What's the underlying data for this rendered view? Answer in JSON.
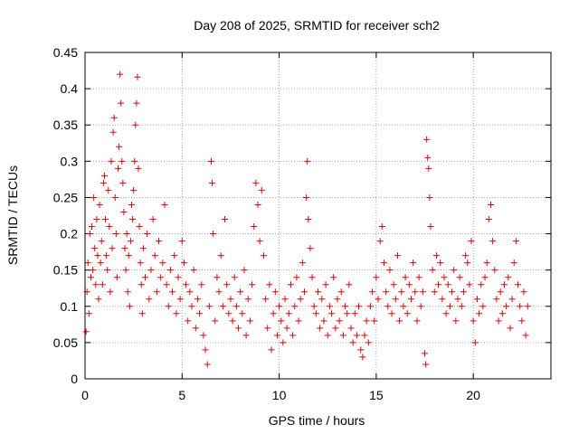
{
  "chart_data": {
    "type": "scatter",
    "title": "Day 208 of 2025, SRMTID for receiver sch2",
    "xlabel": "GPS time / hours",
    "ylabel": "SRMTID / TECUs",
    "xlim": [
      0,
      24
    ],
    "ylim": [
      0,
      0.45
    ],
    "xticks": [
      0,
      5,
      10,
      15,
      20
    ],
    "xtick_labels": [
      "0",
      "5",
      "10",
      "15",
      "20"
    ],
    "yticks": [
      0,
      0.05,
      0.1,
      0.15,
      0.2,
      0.25,
      0.3,
      0.35,
      0.4,
      0.45
    ],
    "ytick_labels": [
      "0",
      "0.05",
      "0.1",
      "0.15",
      "0.2",
      "0.25",
      "0.3",
      "0.35",
      "0.4",
      "0.45"
    ],
    "grid": true,
    "marker": "plus",
    "color": "#ee0000",
    "series": [
      {
        "name": "sch2",
        "points": [
          [
            0.05,
            0.065
          ],
          [
            0.1,
            0.12
          ],
          [
            0.15,
            0.16
          ],
          [
            0.2,
            0.09
          ],
          [
            0.25,
            0.2
          ],
          [
            0.3,
            0.14
          ],
          [
            0.35,
            0.21
          ],
          [
            0.4,
            0.15
          ],
          [
            0.45,
            0.25
          ],
          [
            0.5,
            0.18
          ],
          [
            0.55,
            0.13
          ],
          [
            0.6,
            0.22
          ],
          [
            0.65,
            0.17
          ],
          [
            0.7,
            0.11
          ],
          [
            0.75,
            0.24
          ],
          [
            0.8,
            0.16
          ],
          [
            0.85,
            0.19
          ],
          [
            0.9,
            0.13
          ],
          [
            0.95,
            0.27
          ],
          [
            1.0,
            0.28
          ],
          [
            1.05,
            0.22
          ],
          [
            1.1,
            0.17
          ],
          [
            1.15,
            0.15
          ],
          [
            1.2,
            0.26
          ],
          [
            1.25,
            0.21
          ],
          [
            1.3,
            0.12
          ],
          [
            1.35,
            0.3
          ],
          [
            1.4,
            0.18
          ],
          [
            1.45,
            0.34
          ],
          [
            1.5,
            0.36
          ],
          [
            1.55,
            0.25
          ],
          [
            1.6,
            0.2
          ],
          [
            1.65,
            0.14
          ],
          [
            1.7,
            0.29
          ],
          [
            1.75,
            0.32
          ],
          [
            1.8,
            0.42
          ],
          [
            1.85,
            0.38
          ],
          [
            1.9,
            0.3
          ],
          [
            1.95,
            0.27
          ],
          [
            2.0,
            0.23
          ],
          [
            2.05,
            0.18
          ],
          [
            2.1,
            0.15
          ],
          [
            2.15,
            0.2
          ],
          [
            2.2,
            0.12
          ],
          [
            2.25,
            0.17
          ],
          [
            2.3,
            0.1
          ],
          [
            2.35,
            0.19
          ],
          [
            2.4,
            0.24
          ],
          [
            2.45,
            0.22
          ],
          [
            2.5,
            0.26
          ],
          [
            2.55,
            0.3
          ],
          [
            2.6,
            0.35
          ],
          [
            2.65,
            0.38
          ],
          [
            2.7,
            0.416
          ],
          [
            2.75,
            0.29
          ],
          [
            2.8,
            0.21
          ],
          [
            2.85,
            0.16
          ],
          [
            2.9,
            0.13
          ],
          [
            2.95,
            0.09
          ],
          [
            3.0,
            0.18
          ],
          [
            3.1,
            0.14
          ],
          [
            3.2,
            0.2
          ],
          [
            3.3,
            0.11
          ],
          [
            3.4,
            0.15
          ],
          [
            3.5,
            0.22
          ],
          [
            3.6,
            0.17
          ],
          [
            3.7,
            0.12
          ],
          [
            3.8,
            0.19
          ],
          [
            3.9,
            0.14
          ],
          [
            4.0,
            0.16
          ],
          [
            4.1,
            0.24
          ],
          [
            4.2,
            0.13
          ],
          [
            4.3,
            0.1
          ],
          [
            4.4,
            0.15
          ],
          [
            4.5,
            0.12
          ],
          [
            4.6,
            0.17
          ],
          [
            4.7,
            0.09
          ],
          [
            4.8,
            0.14
          ],
          [
            4.9,
            0.11
          ],
          [
            5.0,
            0.19
          ],
          [
            5.1,
            0.16
          ],
          [
            5.2,
            0.13
          ],
          [
            5.3,
            0.08
          ],
          [
            5.4,
            0.12
          ],
          [
            5.5,
            0.1
          ],
          [
            5.6,
            0.15
          ],
          [
            5.7,
            0.07
          ],
          [
            5.8,
            0.11
          ],
          [
            5.9,
            0.09
          ],
          [
            6.0,
            0.13
          ],
          [
            6.1,
            0.06
          ],
          [
            6.2,
            0.04
          ],
          [
            6.3,
            0.02
          ],
          [
            6.4,
            0.1
          ],
          [
            6.5,
            0.3
          ],
          [
            6.55,
            0.27
          ],
          [
            6.6,
            0.2
          ],
          [
            6.7,
            0.08
          ],
          [
            6.8,
            0.14
          ],
          [
            6.9,
            0.12
          ],
          [
            7.0,
            0.17
          ],
          [
            7.1,
            0.1
          ],
          [
            7.2,
            0.22
          ],
          [
            7.3,
            0.13
          ],
          [
            7.4,
            0.09
          ],
          [
            7.5,
            0.11
          ],
          [
            7.6,
            0.08
          ],
          [
            7.7,
            0.14
          ],
          [
            7.8,
            0.1
          ],
          [
            7.9,
            0.07
          ],
          [
            8.0,
            0.12
          ],
          [
            8.1,
            0.09
          ],
          [
            8.2,
            0.15
          ],
          [
            8.3,
            0.06
          ],
          [
            8.4,
            0.11
          ],
          [
            8.5,
            0.08
          ],
          [
            8.6,
            0.13
          ],
          [
            8.7,
            0.21
          ],
          [
            8.8,
            0.27
          ],
          [
            8.9,
            0.24
          ],
          [
            9.0,
            0.19
          ],
          [
            9.1,
            0.26
          ],
          [
            9.2,
            0.17
          ],
          [
            9.3,
            0.11
          ],
          [
            9.4,
            0.07
          ],
          [
            9.5,
            0.13
          ],
          [
            9.6,
            0.04
          ],
          [
            9.7,
            0.09
          ],
          [
            9.8,
            0.12
          ],
          [
            9.9,
            0.06
          ],
          [
            10.0,
            0.1
          ],
          [
            10.1,
            0.08
          ],
          [
            10.2,
            0.05
          ],
          [
            10.3,
            0.11
          ],
          [
            10.4,
            0.07
          ],
          [
            10.5,
            0.09
          ],
          [
            10.6,
            0.13
          ],
          [
            10.7,
            0.06
          ],
          [
            10.8,
            0.1
          ],
          [
            10.9,
            0.14
          ],
          [
            11.0,
            0.08
          ],
          [
            11.1,
            0.11
          ],
          [
            11.2,
            0.16
          ],
          [
            11.3,
            0.12
          ],
          [
            11.4,
            0.25
          ],
          [
            11.45,
            0.3
          ],
          [
            11.5,
            0.22
          ],
          [
            11.6,
            0.18
          ],
          [
            11.7,
            0.14
          ],
          [
            11.8,
            0.1
          ],
          [
            11.9,
            0.09
          ],
          [
            12.0,
            0.12
          ],
          [
            12.1,
            0.07
          ],
          [
            12.2,
            0.11
          ],
          [
            12.3,
            0.08
          ],
          [
            12.4,
            0.13
          ],
          [
            12.5,
            0.06
          ],
          [
            12.6,
            0.1
          ],
          [
            12.7,
            0.09
          ],
          [
            12.8,
            0.14
          ],
          [
            12.9,
            0.07
          ],
          [
            13.0,
            0.11
          ],
          [
            13.1,
            0.08
          ],
          [
            13.2,
            0.12
          ],
          [
            13.3,
            0.06
          ],
          [
            13.4,
            0.1
          ],
          [
            13.5,
            0.09
          ],
          [
            13.6,
            0.13
          ],
          [
            13.7,
            0.07
          ],
          [
            13.8,
            0.05
          ],
          [
            13.9,
            0.09
          ],
          [
            14.0,
            0.06
          ],
          [
            14.1,
            0.1
          ],
          [
            14.2,
            0.04
          ],
          [
            14.3,
            0.03
          ],
          [
            14.4,
            0.06
          ],
          [
            14.5,
            0.08
          ],
          [
            14.6,
            0.05
          ],
          [
            14.7,
            0.1
          ],
          [
            14.8,
            0.12
          ],
          [
            14.9,
            0.08
          ],
          [
            15.0,
            0.14
          ],
          [
            15.1,
            0.11
          ],
          [
            15.2,
            0.19
          ],
          [
            15.3,
            0.21
          ],
          [
            15.4,
            0.16
          ],
          [
            15.5,
            0.12
          ],
          [
            15.6,
            0.1
          ],
          [
            15.7,
            0.15
          ],
          [
            15.8,
            0.09
          ],
          [
            15.9,
            0.13
          ],
          [
            16.0,
            0.11
          ],
          [
            16.1,
            0.17
          ],
          [
            16.2,
            0.08
          ],
          [
            16.3,
            0.12
          ],
          [
            16.4,
            0.1
          ],
          [
            16.5,
            0.14
          ],
          [
            16.6,
            0.09
          ],
          [
            16.7,
            0.13
          ],
          [
            16.8,
            0.11
          ],
          [
            16.9,
            0.16
          ],
          [
            17.0,
            0.12
          ],
          [
            17.1,
            0.08
          ],
          [
            17.2,
            0.14
          ],
          [
            17.3,
            0.1
          ],
          [
            17.4,
            0.12
          ],
          [
            17.5,
            0.035
          ],
          [
            17.55,
            0.02
          ],
          [
            17.6,
            0.33
          ],
          [
            17.65,
            0.305
          ],
          [
            17.7,
            0.29
          ],
          [
            17.75,
            0.25
          ],
          [
            17.8,
            0.21
          ],
          [
            17.9,
            0.15
          ],
          [
            18.0,
            0.12
          ],
          [
            18.1,
            0.17
          ],
          [
            18.2,
            0.13
          ],
          [
            18.3,
            0.16
          ],
          [
            18.4,
            0.11
          ],
          [
            18.5,
            0.14
          ],
          [
            18.6,
            0.09
          ],
          [
            18.7,
            0.13
          ],
          [
            18.8,
            0.1
          ],
          [
            18.9,
            0.12
          ],
          [
            19.0,
            0.15
          ],
          [
            19.1,
            0.08
          ],
          [
            19.2,
            0.11
          ],
          [
            19.3,
            0.14
          ],
          [
            19.4,
            0.1
          ],
          [
            19.5,
            0.12
          ],
          [
            19.6,
            0.17
          ],
          [
            19.7,
            0.16
          ],
          [
            19.8,
            0.13
          ],
          [
            19.9,
            0.19
          ],
          [
            20.0,
            0.08
          ],
          [
            20.1,
            0.05
          ],
          [
            20.2,
            0.11
          ],
          [
            20.3,
            0.09
          ],
          [
            20.4,
            0.13
          ],
          [
            20.5,
            0.1
          ],
          [
            20.6,
            0.14
          ],
          [
            20.7,
            0.16
          ],
          [
            20.8,
            0.22
          ],
          [
            20.9,
            0.24
          ],
          [
            21.0,
            0.19
          ],
          [
            21.1,
            0.15
          ],
          [
            21.2,
            0.11
          ],
          [
            21.3,
            0.08
          ],
          [
            21.4,
            0.12
          ],
          [
            21.5,
            0.09
          ],
          [
            21.6,
            0.13
          ],
          [
            21.7,
            0.1
          ],
          [
            21.8,
            0.14
          ],
          [
            21.9,
            0.07
          ],
          [
            22.0,
            0.11
          ],
          [
            22.1,
            0.16
          ],
          [
            22.2,
            0.19
          ],
          [
            22.3,
            0.13
          ],
          [
            22.4,
            0.1
          ],
          [
            22.5,
            0.08
          ],
          [
            22.6,
            0.12
          ],
          [
            22.7,
            0.06
          ],
          [
            22.8,
            0.1
          ]
        ]
      }
    ]
  }
}
